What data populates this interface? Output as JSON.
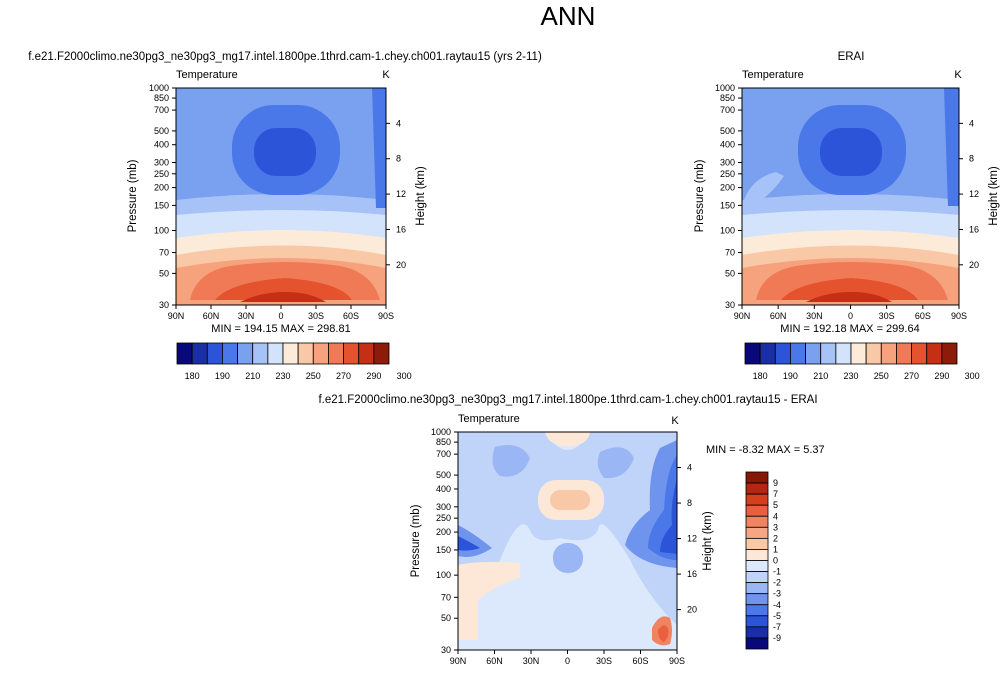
{
  "figure": {
    "title": "ANN"
  },
  "chart_data": [
    {
      "type": "heatmap",
      "title": "f.e21.F2000climo.ne30pg3_ne30pg3_mg17.intel.1800pe.1thrd.cam-1.chey.ch001.raytau15 (yrs 2-11)",
      "field_label": "Temperature",
      "units": "K",
      "ylabel": "Pressure (mb)",
      "ylabel_right": "Height (km)",
      "x_ticks": [
        "90N",
        "60N",
        "30N",
        "0",
        "30S",
        "60S",
        "90S"
      ],
      "y_ticks": [
        "30",
        "50",
        "70",
        "100",
        "150",
        "200",
        "250",
        "300",
        "400",
        "500",
        "700",
        "850",
        "1000"
      ],
      "height_ticks": [
        "20",
        "16",
        "12",
        "8",
        "4"
      ],
      "stats": "MIN = 194.15   MAX = 298.81",
      "colorbar_labels": [
        "180",
        "190",
        "210",
        "230",
        "250",
        "270",
        "290",
        "300"
      ],
      "min": 194.15,
      "max": 298.81
    },
    {
      "type": "heatmap",
      "title": "ERAI",
      "field_label": "Temperature",
      "units": "K",
      "ylabel": "Pressure (mb)",
      "ylabel_right": "Height (km)",
      "x_ticks": [
        "90N",
        "60N",
        "30N",
        "0",
        "30S",
        "60S",
        "90S"
      ],
      "y_ticks": [
        "30",
        "50",
        "70",
        "100",
        "150",
        "200",
        "250",
        "300",
        "400",
        "500",
        "700",
        "850",
        "1000"
      ],
      "height_ticks": [
        "20",
        "16",
        "12",
        "8",
        "4"
      ],
      "stats": "MIN = 192.18   MAX = 299.64",
      "colorbar_labels": [
        "180",
        "190",
        "210",
        "230",
        "250",
        "270",
        "290",
        "300"
      ],
      "min": 192.18,
      "max": 299.64
    },
    {
      "type": "heatmap",
      "title": "f.e21.F2000climo.ne30pg3_ne30pg3_mg17.intel.1800pe.1thrd.cam-1.chey.ch001.raytau15 - ERAI",
      "field_label": "Temperature",
      "units": "K",
      "ylabel": "Pressure (mb)",
      "ylabel_right": "Height (km)",
      "x_ticks": [
        "90N",
        "60N",
        "30N",
        "0",
        "30S",
        "60S",
        "90S"
      ],
      "y_ticks": [
        "30",
        "50",
        "70",
        "100",
        "150",
        "200",
        "250",
        "300",
        "400",
        "500",
        "700",
        "850",
        "1000"
      ],
      "height_ticks": [
        "20",
        "16",
        "12",
        "8",
        "4"
      ],
      "stats": "MIN = -8.32   MAX =   5.37",
      "colorbar_labels": [
        "9",
        "7",
        "5",
        "4",
        "3",
        "2",
        "1",
        "0",
        "-1",
        "-2",
        "-3",
        "-4",
        "-5",
        "-7",
        "-9"
      ],
      "min": -8.32,
      "max": 5.37
    }
  ],
  "colors": {
    "abs_levels": [
      "#08087a",
      "#1a2fa6",
      "#2b54d9",
      "#4a78e8",
      "#7aa0f0",
      "#a6c2f7",
      "#d2e3fb",
      "#fdebd9",
      "#f9c8a6",
      "#f5a27d",
      "#f07a55",
      "#e4522e",
      "#c52f16",
      "#8e1a0a"
    ],
    "diff_levels": [
      "#08087a",
      "#1a2fa6",
      "#2b54d9",
      "#4a78e8",
      "#6f94ee",
      "#9ab6f4",
      "#c0d4f9",
      "#dce8fc",
      "#fde8d8",
      "#f9c8a6",
      "#f5a684",
      "#f08360",
      "#e8603d",
      "#d43f1f",
      "#b52612",
      "#861808"
    ]
  }
}
